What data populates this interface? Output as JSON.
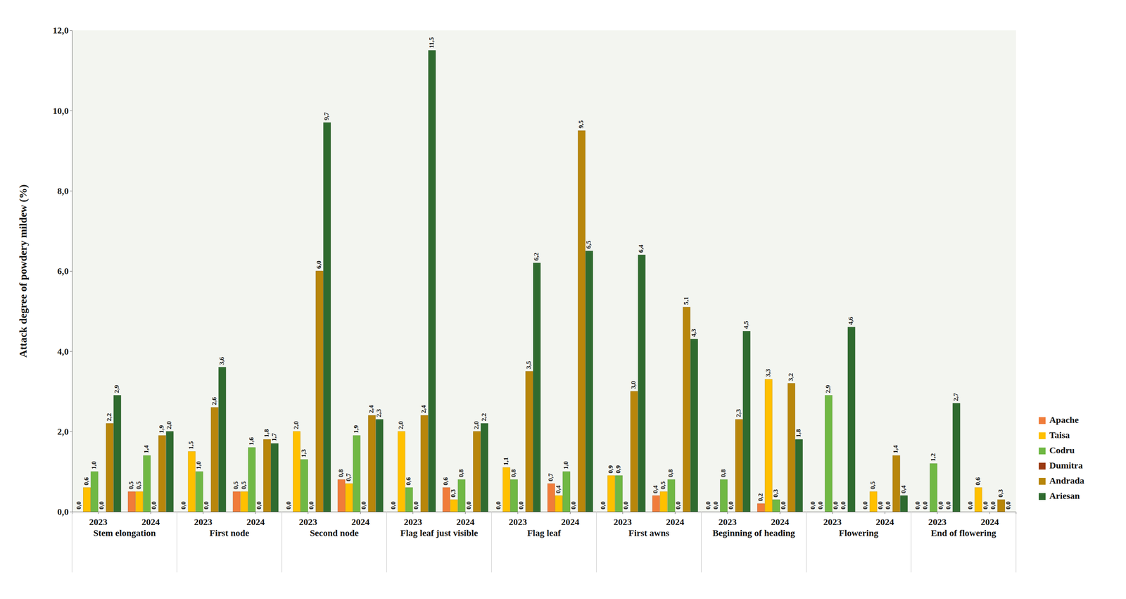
{
  "chart_data": {
    "type": "bar",
    "y_label": "Attack degree of powdery mildew (%)",
    "categories": [
      "2023",
      "2024",
      "2023",
      "2024",
      "2023",
      "2024",
      "2023",
      "2024",
      "2023",
      "2024",
      "2023",
      "2024",
      "2023",
      "2024",
      "2023",
      "2024",
      "2023",
      "2024"
    ],
    "category_groups": [
      "Stem elongation",
      "First node",
      "Second node",
      "Flag leaf just visible",
      "Flag leaf",
      "First awns",
      "Beginning of heading",
      "Flowering",
      "End of flowering"
    ],
    "ylim": [
      0,
      12
    ],
    "yticks": [
      {
        "value": 0,
        "label": "0,0"
      },
      {
        "value": 2,
        "label": "2,0"
      },
      {
        "value": 4,
        "label": "4,0"
      },
      {
        "value": 6,
        "label": "6,0"
      },
      {
        "value": 8,
        "label": "8,0"
      },
      {
        "value": 10,
        "label": "10,0"
      },
      {
        "value": 12,
        "label": "12,0"
      }
    ],
    "grid": false,
    "legend": "right",
    "data_labels": true,
    "series": [
      {
        "name": "Apache",
        "color": "#f07c3a",
        "values": [
          0.0,
          0.5,
          0.0,
          0.5,
          0.0,
          0.8,
          0.0,
          0.6,
          0.0,
          0.7,
          0.0,
          0.4,
          0.0,
          0.2,
          0.0,
          0.0,
          0.0,
          0.0
        ],
        "value_labels": [
          "0,0",
          "0,5",
          "0,0",
          "0,5",
          "0,0",
          "0,8",
          "0,0",
          "0,6",
          "0,0",
          "0,7",
          "0,0",
          "0,4",
          "0,0",
          "0,2",
          "0,0",
          "0,0",
          "0,0",
          "0,0"
        ]
      },
      {
        "name": "Taisa",
        "color": "#ffc000",
        "values": [
          0.6,
          0.5,
          1.5,
          0.5,
          2.0,
          0.7,
          2.0,
          0.3,
          1.1,
          0.4,
          0.9,
          0.5,
          0.0,
          3.3,
          0.0,
          0.5,
          0.0,
          0.6
        ],
        "value_labels": [
          "0,6",
          "0,5",
          "1,5",
          "0,5",
          "2,0",
          "0,7",
          "2,0",
          "0,3",
          "1,1",
          "0,4",
          "0,9",
          "0,5",
          "0,0",
          "3,3",
          "0,0",
          "0,5",
          "0,0",
          "0,6"
        ]
      },
      {
        "name": "Codru",
        "color": "#70b844",
        "values": [
          1.0,
          1.4,
          1.0,
          1.6,
          1.3,
          1.9,
          0.6,
          0.8,
          0.8,
          1.0,
          0.9,
          0.8,
          0.8,
          0.3,
          2.9,
          0.0,
          1.2,
          0.0
        ],
        "value_labels": [
          "1,0",
          "1,4",
          "1,0",
          "1,6",
          "1,3",
          "1,9",
          "0,6",
          "0,8",
          "0,8",
          "1,0",
          "0,9",
          "0,8",
          "0,8",
          "0,3",
          "2,9",
          "0,0",
          "1,2",
          "0,0"
        ]
      },
      {
        "name": "Dumitra",
        "color": "#9b3a12",
        "values": [
          0.0,
          0.0,
          0.0,
          0.0,
          0.0,
          0.0,
          0.0,
          0.0,
          0.0,
          0.0,
          0.0,
          0.0,
          0.0,
          0.0,
          0.0,
          0.0,
          0.0,
          0.0
        ],
        "value_labels": [
          "0,0",
          "0,0",
          "0,0",
          "0,0",
          "0,0",
          "0,0",
          "0,0",
          "0,0",
          "0,0",
          "0,0",
          "0,0",
          "0,0",
          "0,0",
          "0,0",
          "0,0",
          "0,0",
          "0,0",
          "0,0"
        ]
      },
      {
        "name": "Andrada",
        "color": "#b8860b",
        "values": [
          2.2,
          1.9,
          2.6,
          1.8,
          6.0,
          2.4,
          2.4,
          2.0,
          3.5,
          9.5,
          3.0,
          5.1,
          2.3,
          3.2,
          0.0,
          1.4,
          0.0,
          0.3
        ],
        "value_labels": [
          "2,2",
          "1,9",
          "2,6",
          "1,8",
          "6,0",
          "2,4",
          "2,4",
          "2,0",
          "3,5",
          "9,5",
          "3,0",
          "5,1",
          "2,3",
          "3,2",
          "0,0",
          "1,4",
          "0,0",
          "0,3"
        ]
      },
      {
        "name": "Ariesan",
        "color": "#2f6b2f",
        "values": [
          2.9,
          2.0,
          3.6,
          1.7,
          9.7,
          2.3,
          11.5,
          2.2,
          6.2,
          6.5,
          6.4,
          4.3,
          4.5,
          1.8,
          4.6,
          0.4,
          2.7,
          0.0
        ],
        "value_labels": [
          "2,9",
          "2,0",
          "3,6",
          "1,7",
          "9,7",
          "2,3",
          "11,5",
          "2,2",
          "6,2",
          "6,5",
          "6,4",
          "4,3",
          "4,5",
          "1,8",
          "4,6",
          "0,4",
          "2,7",
          "0,0"
        ]
      }
    ]
  }
}
